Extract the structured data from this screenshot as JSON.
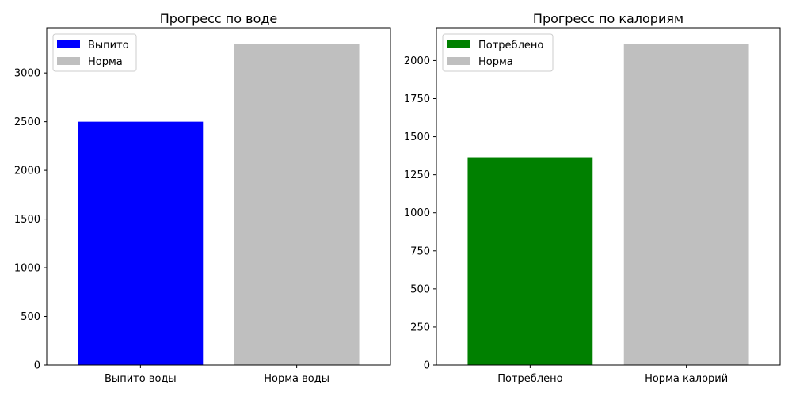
{
  "colors": {
    "water_drunk": "#0000ff",
    "calories_consumed": "#008000",
    "norm": "#bfbfbf"
  },
  "chart_data": [
    {
      "type": "bar",
      "title": "Прогресс по воде",
      "categories": [
        "Выпито воды",
        "Норма воды"
      ],
      "values": [
        2500,
        3300
      ],
      "colors": [
        "#0000ff",
        "#bfbfbf"
      ],
      "ylim": [
        0,
        3465
      ],
      "yticks": [
        0,
        500,
        1000,
        1500,
        2000,
        2500,
        3000
      ],
      "legend": {
        "position": "top-left",
        "entries": [
          {
            "label": "Выпито",
            "color": "#0000ff"
          },
          {
            "label": "Норма",
            "color": "#bfbfbf"
          }
        ]
      },
      "grid": false
    },
    {
      "type": "bar",
      "title": "Прогресс по калориям",
      "categories": [
        "Потреблено",
        "Норма калорий"
      ],
      "values": [
        1365,
        2110
      ],
      "colors": [
        "#008000",
        "#bfbfbf"
      ],
      "ylim": [
        0,
        2215.5
      ],
      "yticks": [
        0,
        250,
        500,
        750,
        1000,
        1250,
        1500,
        1750,
        2000
      ],
      "legend": {
        "position": "top-left",
        "entries": [
          {
            "label": "Потреблено",
            "color": "#008000"
          },
          {
            "label": "Норма",
            "color": "#bfbfbf"
          }
        ]
      },
      "grid": false
    }
  ]
}
